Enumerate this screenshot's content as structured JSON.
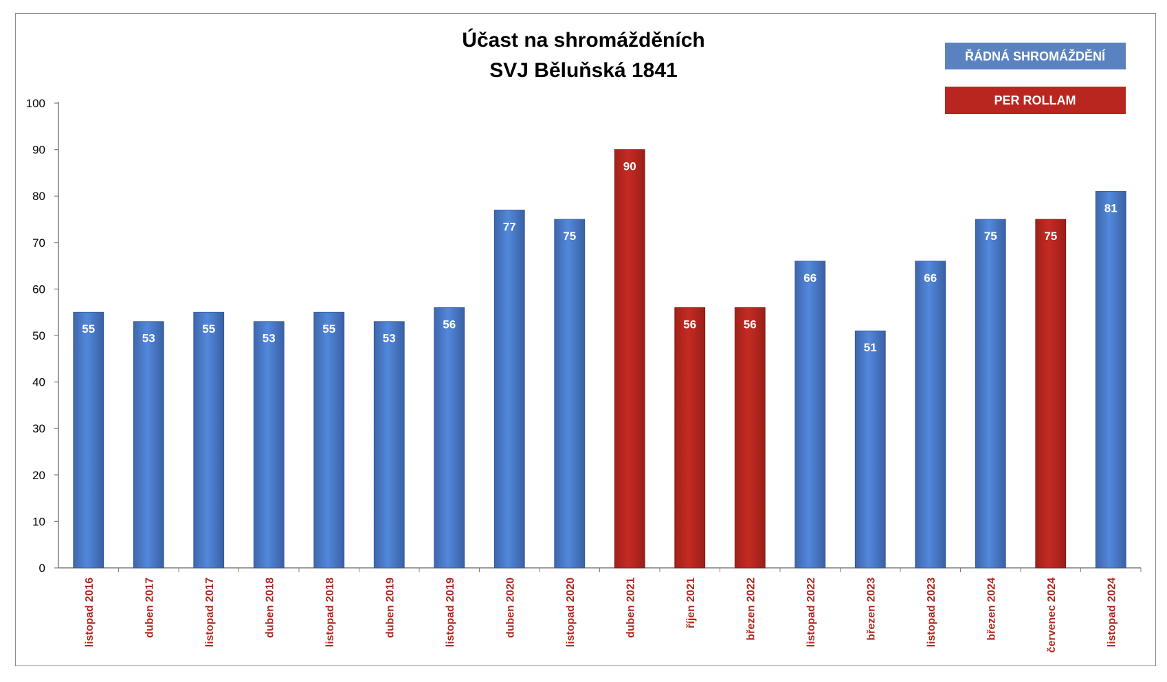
{
  "chart_data": {
    "type": "bar",
    "title_lines": [
      "Účast na shromážděních",
      "SVJ Běluňská 1841"
    ],
    "ylim": [
      0,
      100
    ],
    "yticks": [
      0,
      10,
      20,
      30,
      40,
      50,
      60,
      70,
      80,
      90,
      100
    ],
    "categories": [
      "listopad 2016",
      "duben 2017",
      "listopad 2017",
      "duben 2018",
      "listopad 2018",
      "duben 2019",
      "listopad 2019",
      "duben 2020",
      "listopad 2020",
      "duben 2021",
      "říjen 2021",
      "březen 2022",
      "listopad 2022",
      "březen 2023",
      "listopad 2023",
      "březen 2024",
      "červenec 2024",
      "listopad 2024"
    ],
    "values": [
      55,
      53,
      55,
      53,
      55,
      53,
      56,
      77,
      75,
      90,
      56,
      56,
      66,
      51,
      66,
      75,
      75,
      81
    ],
    "value_labels": [
      "55",
      "53",
      "55",
      "53",
      "55",
      "53",
      "56",
      "77",
      "75",
      "90",
      "56",
      "56",
      "66",
      "51",
      "66",
      "75",
      "75",
      "81"
    ],
    "bar_types": [
      "regular",
      "regular",
      "regular",
      "regular",
      "regular",
      "regular",
      "regular",
      "regular",
      "regular",
      "per_rollam",
      "per_rollam",
      "per_rollam",
      "regular",
      "regular",
      "regular",
      "regular",
      "per_rollam",
      "regular"
    ],
    "legend": [
      {
        "key": "regular",
        "label": "ŘÁDNÁ SHROMÁŽDĚNÍ",
        "color": "#5b82c0"
      },
      {
        "key": "per_rollam",
        "label": "PER ROLLAM",
        "color": "#b8261f"
      }
    ],
    "legend_position": "top-right",
    "grid": false,
    "colors": {
      "regular": "#4a7bd0",
      "per_rollam": "#b8261f",
      "category_label": "#b0281f"
    }
  }
}
